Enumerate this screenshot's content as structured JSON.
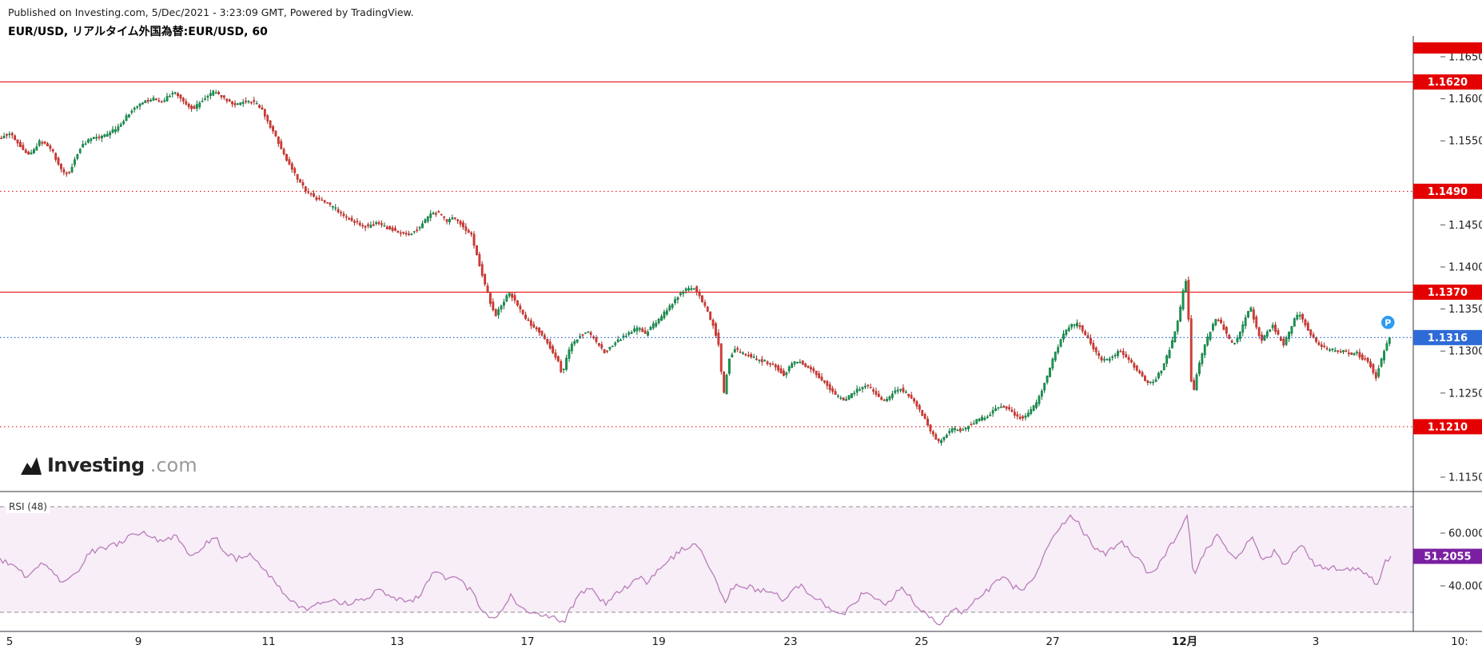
{
  "header": {
    "publish_info": "Published on Investing.com, 5/Dec/2021 - 3:23:09 GMT, Powered by TradingView.",
    "symbol_title": "EUR/USD, リアルタイム外国為替:EUR/USD, 60"
  },
  "logo": {
    "brand": "Investing",
    "suffix": ".com"
  },
  "rsi_panel": {
    "label": "RSI (48)"
  },
  "colors": {
    "up": "#169b52",
    "up_border": "#0a6b37",
    "down": "#dc3a34",
    "down_border": "#a7231d",
    "level_red": "#e40000",
    "last_blue": "#2f6bd7",
    "rsi_line": "#ba7cba",
    "rsi_badge": "#7b1fa2",
    "band_fill": "#f7eef7",
    "axis_text": "#1c1c1c"
  },
  "chart_data": {
    "type": "candlestick",
    "symbol": "EUR/USD",
    "timeframe_minutes": 60,
    "price_ylim": [
      1.115,
      1.165
    ],
    "y_ticks": [
      "1.1650",
      "1.1600",
      "1.1550",
      "1.1450",
      "1.1400",
      "1.1350",
      "1.1300",
      "1.1250",
      "1.1150"
    ],
    "x_ticks": [
      {
        "text": "5",
        "t": 0.0069
      },
      {
        "text": "9",
        "t": 0.0994
      },
      {
        "text": "11",
        "t": 0.1931
      },
      {
        "text": "13",
        "t": 0.2856
      },
      {
        "text": "17",
        "t": 0.3793
      },
      {
        "text": "19",
        "t": 0.4736
      },
      {
        "text": "23",
        "t": 0.5684
      },
      {
        "text": "25",
        "t": 0.6626
      },
      {
        "text": "27",
        "t": 0.7569
      },
      {
        "text": "12月",
        "t": 0.8517,
        "bold": true
      },
      {
        "text": "3",
        "t": 0.946
      },
      {
        "text": "10:",
        "t": 1.0494
      }
    ],
    "levels": [
      {
        "price": 1.162,
        "label": "1.1620",
        "line": "solid"
      },
      {
        "price": 1.149,
        "label": "1.1490",
        "line": "dotted"
      },
      {
        "price": 1.137,
        "label": "1.1370",
        "line": "solid"
      },
      {
        "price": 1.121,
        "label": "1.1210",
        "line": "dotted"
      }
    ],
    "last_price": 1.1316,
    "last_price_label": "1.1316",
    "marker": {
      "letter": "P",
      "price": 1.1334
    },
    "price_path": [
      [
        0.0,
        1.1552
      ],
      [
        0.008,
        1.156
      ],
      [
        0.015,
        1.1545
      ],
      [
        0.022,
        1.1532
      ],
      [
        0.03,
        1.155
      ],
      [
        0.038,
        1.154
      ],
      [
        0.045,
        1.1515
      ],
      [
        0.05,
        1.151
      ],
      [
        0.058,
        1.154
      ],
      [
        0.065,
        1.1552
      ],
      [
        0.075,
        1.1555
      ],
      [
        0.085,
        1.1565
      ],
      [
        0.095,
        1.1585
      ],
      [
        0.102,
        1.1595
      ],
      [
        0.11,
        1.16
      ],
      [
        0.118,
        1.1597
      ],
      [
        0.126,
        1.1608
      ],
      [
        0.133,
        1.1597
      ],
      [
        0.14,
        1.1588
      ],
      [
        0.148,
        1.16
      ],
      [
        0.155,
        1.1609
      ],
      [
        0.162,
        1.16
      ],
      [
        0.17,
        1.1593
      ],
      [
        0.178,
        1.1598
      ],
      [
        0.185,
        1.1595
      ],
      [
        0.19,
        1.1585
      ],
      [
        0.196,
        1.1565
      ],
      [
        0.202,
        1.1545
      ],
      [
        0.208,
        1.1525
      ],
      [
        0.215,
        1.1505
      ],
      [
        0.221,
        1.149
      ],
      [
        0.228,
        1.1482
      ],
      [
        0.235,
        1.1476
      ],
      [
        0.243,
        1.1468
      ],
      [
        0.25,
        1.1458
      ],
      [
        0.258,
        1.1452
      ],
      [
        0.265,
        1.1448
      ],
      [
        0.272,
        1.1452
      ],
      [
        0.28,
        1.1446
      ],
      [
        0.288,
        1.1442
      ],
      [
        0.295,
        1.1438
      ],
      [
        0.302,
        1.1446
      ],
      [
        0.31,
        1.1462
      ],
      [
        0.316,
        1.1465
      ],
      [
        0.322,
        1.1455
      ],
      [
        0.328,
        1.1458
      ],
      [
        0.334,
        1.1448
      ],
      [
        0.34,
        1.1438
      ],
      [
        0.346,
        1.14
      ],
      [
        0.352,
        1.1365
      ],
      [
        0.357,
        1.1342
      ],
      [
        0.362,
        1.1356
      ],
      [
        0.367,
        1.137
      ],
      [
        0.372,
        1.1358
      ],
      [
        0.378,
        1.134
      ],
      [
        0.384,
        1.133
      ],
      [
        0.39,
        1.1322
      ],
      [
        0.396,
        1.1305
      ],
      [
        0.402,
        1.129
      ],
      [
        0.405,
        1.1272
      ],
      [
        0.409,
        1.1296
      ],
      [
        0.413,
        1.131
      ],
      [
        0.418,
        1.1318
      ],
      [
        0.424,
        1.1322
      ],
      [
        0.43,
        1.131
      ],
      [
        0.436,
        1.1298
      ],
      [
        0.442,
        1.1308
      ],
      [
        0.448,
        1.1316
      ],
      [
        0.454,
        1.1322
      ],
      [
        0.46,
        1.1328
      ],
      [
        0.465,
        1.132
      ],
      [
        0.47,
        1.133
      ],
      [
        0.476,
        1.134
      ],
      [
        0.482,
        1.1352
      ],
      [
        0.488,
        1.1365
      ],
      [
        0.494,
        1.1373
      ],
      [
        0.5,
        1.1375
      ],
      [
        0.505,
        1.1362
      ],
      [
        0.51,
        1.1345
      ],
      [
        0.514,
        1.133
      ],
      [
        0.518,
        1.1305
      ],
      [
        0.521,
        1.1245
      ],
      [
        0.525,
        1.129
      ],
      [
        0.529,
        1.1302
      ],
      [
        0.535,
        1.1298
      ],
      [
        0.542,
        1.1292
      ],
      [
        0.55,
        1.1288
      ],
      [
        0.558,
        1.1282
      ],
      [
        0.565,
        1.1272
      ],
      [
        0.57,
        1.1285
      ],
      [
        0.576,
        1.1288
      ],
      [
        0.582,
        1.128
      ],
      [
        0.588,
        1.1272
      ],
      [
        0.594,
        1.1262
      ],
      [
        0.6,
        1.125
      ],
      [
        0.606,
        1.1242
      ],
      [
        0.612,
        1.1246
      ],
      [
        0.618,
        1.1255
      ],
      [
        0.624,
        1.126
      ],
      [
        0.63,
        1.125
      ],
      [
        0.636,
        1.124
      ],
      [
        0.642,
        1.1248
      ],
      [
        0.648,
        1.1256
      ],
      [
        0.654,
        1.1248
      ],
      [
        0.66,
        1.1235
      ],
      [
        0.666,
        1.1218
      ],
      [
        0.671,
        1.1202
      ],
      [
        0.676,
        1.1192
      ],
      [
        0.681,
        1.12
      ],
      [
        0.686,
        1.1208
      ],
      [
        0.692,
        1.1205
      ],
      [
        0.698,
        1.1212
      ],
      [
        0.704,
        1.1218
      ],
      [
        0.71,
        1.1222
      ],
      [
        0.716,
        1.123
      ],
      [
        0.722,
        1.1235
      ],
      [
        0.728,
        1.1228
      ],
      [
        0.734,
        1.122
      ],
      [
        0.74,
        1.1225
      ],
      [
        0.746,
        1.1238
      ],
      [
        0.752,
        1.1262
      ],
      [
        0.758,
        1.129
      ],
      [
        0.764,
        1.1315
      ],
      [
        0.77,
        1.133
      ],
      [
        0.776,
        1.1332
      ],
      [
        0.782,
        1.1318
      ],
      [
        0.788,
        1.13
      ],
      [
        0.794,
        1.1288
      ],
      [
        0.8,
        1.1292
      ],
      [
        0.806,
        1.13
      ],
      [
        0.812,
        1.1292
      ],
      [
        0.818,
        1.1278
      ],
      [
        0.824,
        1.1265
      ],
      [
        0.83,
        1.1262
      ],
      [
        0.836,
        1.1278
      ],
      [
        0.841,
        1.1298
      ],
      [
        0.845,
        1.1318
      ],
      [
        0.849,
        1.1345
      ],
      [
        0.852,
        1.1375
      ],
      [
        0.854,
        1.1385
      ],
      [
        0.856,
        1.132
      ],
      [
        0.858,
        1.1242
      ],
      [
        0.861,
        1.127
      ],
      [
        0.864,
        1.129
      ],
      [
        0.868,
        1.131
      ],
      [
        0.872,
        1.1328
      ],
      [
        0.876,
        1.134
      ],
      [
        0.88,
        1.133
      ],
      [
        0.884,
        1.1315
      ],
      [
        0.888,
        1.1308
      ],
      [
        0.892,
        1.132
      ],
      [
        0.896,
        1.1338
      ],
      [
        0.9,
        1.1352
      ],
      [
        0.904,
        1.133
      ],
      [
        0.908,
        1.1312
      ],
      [
        0.912,
        1.1322
      ],
      [
        0.916,
        1.133
      ],
      [
        0.92,
        1.1318
      ],
      [
        0.924,
        1.1308
      ],
      [
        0.928,
        1.1322
      ],
      [
        0.932,
        1.134
      ],
      [
        0.936,
        1.1344
      ],
      [
        0.94,
        1.133
      ],
      [
        0.944,
        1.1318
      ],
      [
        0.948,
        1.1308
      ],
      [
        0.952,
        1.1305
      ],
      [
        0.956,
        1.13
      ],
      [
        0.96,
        1.1302
      ],
      [
        0.964,
        1.1298
      ],
      [
        0.968,
        1.13
      ],
      [
        0.972,
        1.1296
      ],
      [
        0.976,
        1.1298
      ],
      [
        0.98,
        1.1292
      ],
      [
        0.985,
        1.1288
      ],
      [
        0.99,
        1.1268
      ],
      [
        0.993,
        1.1285
      ],
      [
        0.996,
        1.13
      ],
      [
        1.0,
        1.1316
      ]
    ],
    "indicator": {
      "name": "RSI",
      "period": 48,
      "upper_band": 70,
      "lower_band": 30,
      "tick_labels": [
        {
          "text": "60.0000",
          "value": 60
        },
        {
          "text": "40.0000",
          "value": 40
        }
      ],
      "last": 51.2055,
      "last_label": "51.2055",
      "rsi_path": [
        [
          0.0,
          50
        ],
        [
          0.01,
          47
        ],
        [
          0.02,
          43
        ],
        [
          0.03,
          49
        ],
        [
          0.045,
          41
        ],
        [
          0.055,
          45
        ],
        [
          0.065,
          53
        ],
        [
          0.075,
          54
        ],
        [
          0.085,
          56
        ],
        [
          0.095,
          59
        ],
        [
          0.102,
          61
        ],
        [
          0.11,
          58
        ],
        [
          0.118,
          56
        ],
        [
          0.126,
          60
        ],
        [
          0.133,
          54
        ],
        [
          0.14,
          51
        ],
        [
          0.148,
          56
        ],
        [
          0.155,
          58
        ],
        [
          0.162,
          53
        ],
        [
          0.17,
          50
        ],
        [
          0.178,
          52
        ],
        [
          0.185,
          50
        ],
        [
          0.196,
          42
        ],
        [
          0.208,
          35
        ],
        [
          0.215,
          32
        ],
        [
          0.221,
          31
        ],
        [
          0.228,
          33
        ],
        [
          0.235,
          35
        ],
        [
          0.243,
          34
        ],
        [
          0.25,
          33
        ],
        [
          0.258,
          35
        ],
        [
          0.265,
          36
        ],
        [
          0.272,
          38
        ],
        [
          0.28,
          36
        ],
        [
          0.288,
          35
        ],
        [
          0.295,
          34
        ],
        [
          0.302,
          37
        ],
        [
          0.31,
          44
        ],
        [
          0.316,
          46
        ],
        [
          0.322,
          42
        ],
        [
          0.328,
          43
        ],
        [
          0.334,
          40
        ],
        [
          0.34,
          38
        ],
        [
          0.346,
          31
        ],
        [
          0.352,
          28
        ],
        [
          0.357,
          27
        ],
        [
          0.362,
          32
        ],
        [
          0.367,
          36
        ],
        [
          0.372,
          33
        ],
        [
          0.378,
          31
        ],
        [
          0.384,
          30
        ],
        [
          0.39,
          29
        ],
        [
          0.396,
          28
        ],
        [
          0.402,
          27
        ],
        [
          0.405,
          26
        ],
        [
          0.409,
          30
        ],
        [
          0.413,
          34
        ],
        [
          0.418,
          37
        ],
        [
          0.424,
          39
        ],
        [
          0.43,
          36
        ],
        [
          0.436,
          33
        ],
        [
          0.442,
          37
        ],
        [
          0.448,
          39
        ],
        [
          0.454,
          41
        ],
        [
          0.46,
          43
        ],
        [
          0.465,
          41
        ],
        [
          0.47,
          44
        ],
        [
          0.476,
          47
        ],
        [
          0.482,
          50
        ],
        [
          0.488,
          53
        ],
        [
          0.494,
          55
        ],
        [
          0.5,
          56
        ],
        [
          0.505,
          52
        ],
        [
          0.51,
          47
        ],
        [
          0.514,
          43
        ],
        [
          0.518,
          38
        ],
        [
          0.521,
          33
        ],
        [
          0.525,
          38
        ],
        [
          0.529,
          41
        ],
        [
          0.535,
          40
        ],
        [
          0.542,
          39
        ],
        [
          0.55,
          38
        ],
        [
          0.558,
          37
        ],
        [
          0.565,
          34
        ],
        [
          0.57,
          39
        ],
        [
          0.576,
          40
        ],
        [
          0.582,
          37
        ],
        [
          0.588,
          35
        ],
        [
          0.594,
          32
        ],
        [
          0.6,
          30
        ],
        [
          0.606,
          29
        ],
        [
          0.612,
          32
        ],
        [
          0.618,
          36
        ],
        [
          0.624,
          38
        ],
        [
          0.63,
          35
        ],
        [
          0.636,
          32
        ],
        [
          0.642,
          36
        ],
        [
          0.648,
          39
        ],
        [
          0.654,
          36
        ],
        [
          0.66,
          32
        ],
        [
          0.666,
          29
        ],
        [
          0.671,
          27
        ],
        [
          0.676,
          26
        ],
        [
          0.681,
          29
        ],
        [
          0.686,
          31
        ],
        [
          0.692,
          30
        ],
        [
          0.698,
          33
        ],
        [
          0.704,
          36
        ],
        [
          0.71,
          38
        ],
        [
          0.716,
          41
        ],
        [
          0.722,
          43
        ],
        [
          0.728,
          40
        ],
        [
          0.734,
          38
        ],
        [
          0.74,
          41
        ],
        [
          0.746,
          46
        ],
        [
          0.752,
          53
        ],
        [
          0.758,
          60
        ],
        [
          0.764,
          64
        ],
        [
          0.77,
          66
        ],
        [
          0.776,
          63
        ],
        [
          0.782,
          58
        ],
        [
          0.788,
          54
        ],
        [
          0.794,
          52
        ],
        [
          0.8,
          54
        ],
        [
          0.806,
          57
        ],
        [
          0.812,
          54
        ],
        [
          0.818,
          50
        ],
        [
          0.824,
          46
        ],
        [
          0.83,
          45
        ],
        [
          0.836,
          50
        ],
        [
          0.841,
          55
        ],
        [
          0.845,
          58
        ],
        [
          0.849,
          62
        ],
        [
          0.852,
          66
        ],
        [
          0.854,
          68
        ],
        [
          0.856,
          55
        ],
        [
          0.858,
          44
        ],
        [
          0.861,
          48
        ],
        [
          0.864,
          51
        ],
        [
          0.868,
          54
        ],
        [
          0.872,
          57
        ],
        [
          0.876,
          59
        ],
        [
          0.88,
          56
        ],
        [
          0.884,
          52
        ],
        [
          0.888,
          51
        ],
        [
          0.892,
          53
        ],
        [
          0.896,
          56
        ],
        [
          0.9,
          58
        ],
        [
          0.904,
          53
        ],
        [
          0.908,
          49
        ],
        [
          0.912,
          51
        ],
        [
          0.916,
          53
        ],
        [
          0.92,
          50
        ],
        [
          0.924,
          48
        ],
        [
          0.928,
          51
        ],
        [
          0.932,
          54
        ],
        [
          0.936,
          55
        ],
        [
          0.94,
          52
        ],
        [
          0.944,
          49
        ],
        [
          0.948,
          47
        ],
        [
          0.952,
          47
        ],
        [
          0.956,
          46
        ],
        [
          0.96,
          47
        ],
        [
          0.964,
          46
        ],
        [
          0.968,
          47
        ],
        [
          0.972,
          46
        ],
        [
          0.976,
          47
        ],
        [
          0.98,
          45
        ],
        [
          0.985,
          44
        ],
        [
          0.99,
          40
        ],
        [
          0.993,
          45
        ],
        [
          0.996,
          49
        ],
        [
          1.0,
          51.2055
        ]
      ]
    }
  }
}
